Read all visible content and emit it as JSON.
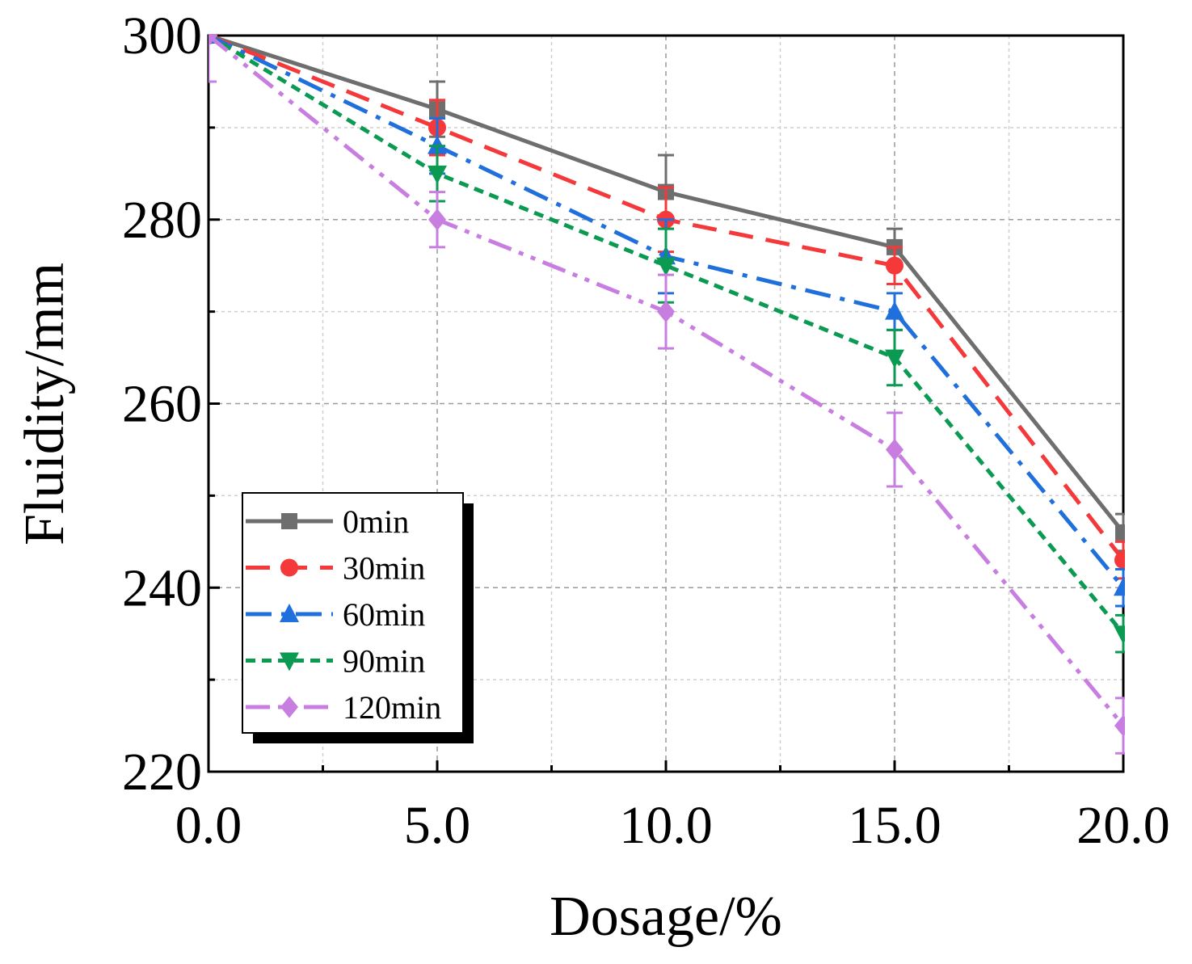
{
  "chart_data": {
    "type": "line",
    "xlabel": "Dosage/%",
    "ylabel": "Fluidity/mm",
    "xlim": [
      0,
      20
    ],
    "ylim": [
      220,
      300
    ],
    "x": [
      0,
      5,
      10,
      15,
      20
    ],
    "x_tick_labels": [
      "0.0",
      "5.0",
      "10.0",
      "15.0",
      "20.0"
    ],
    "y_tick_labels": [
      "220",
      "240",
      "260",
      "280",
      "300"
    ],
    "grid": true,
    "legend_position": "bottom-left",
    "series": [
      {
        "name": "0min",
        "color": "#6e6e6e",
        "line": "solid",
        "marker": "square",
        "values": [
          300,
          292,
          283,
          277,
          246
        ],
        "errors": [
          0,
          3,
          4,
          2,
          2
        ]
      },
      {
        "name": "30min",
        "color": "#f5383a",
        "line": "dash",
        "marker": "circle",
        "values": [
          300,
          290,
          280,
          275,
          243
        ],
        "errors": [
          0,
          3,
          3.5,
          2,
          2
        ]
      },
      {
        "name": "60min",
        "color": "#1f6fdc",
        "line": "dashdot",
        "marker": "triangle-up",
        "values": [
          300,
          288,
          276,
          270,
          240
        ],
        "errors": [
          0,
          3,
          4,
          2,
          2
        ]
      },
      {
        "name": "90min",
        "color": "#0b9a52",
        "line": "dot",
        "marker": "triangle-down",
        "values": [
          300,
          285,
          275,
          265,
          235
        ],
        "errors": [
          0,
          3,
          4,
          3,
          2
        ]
      },
      {
        "name": "120min",
        "color": "#c77ee0",
        "line": "dashdotdot",
        "marker": "diamond",
        "values": [
          300,
          280,
          270,
          255,
          225
        ],
        "errors": [
          5,
          3,
          4,
          4,
          3
        ]
      }
    ]
  }
}
